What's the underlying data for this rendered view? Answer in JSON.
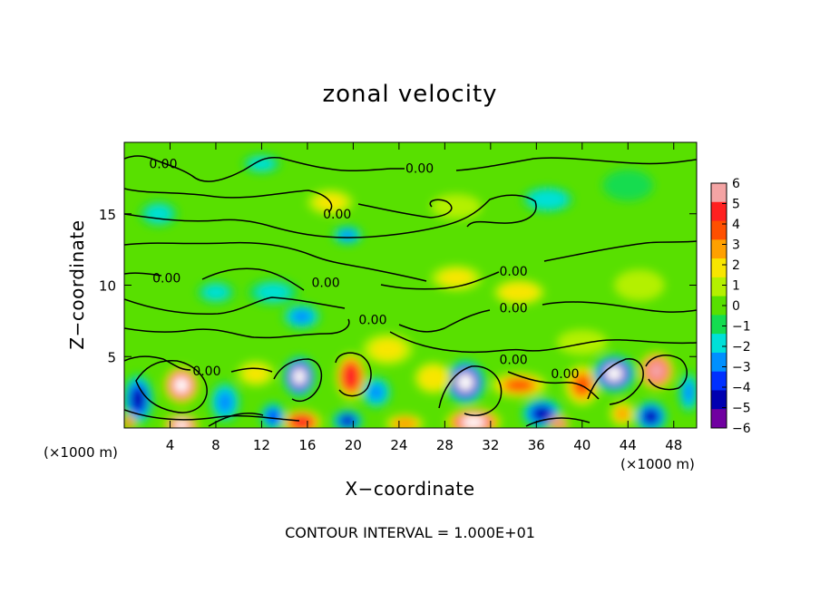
{
  "chart_data": {
    "type": "heatmap",
    "title": "zonal velocity",
    "xlabel": "X−coordinate",
    "ylabel": "Z−coordinate",
    "x_unit_left": "(×1000 m)",
    "x_unit_right": "(×1000 m)",
    "footer": "CONTOUR INTERVAL = 1.000E+01",
    "xlim": [
      0,
      50
    ],
    "ylim": [
      0,
      20
    ],
    "x_ticks": [
      4,
      8,
      12,
      16,
      20,
      24,
      28,
      32,
      36,
      40,
      44,
      48
    ],
    "y_ticks": [
      5,
      10,
      15
    ],
    "colorbar": {
      "min": -6,
      "max": 6,
      "ticks": [
        "6",
        "5",
        "4",
        "3",
        "2",
        "1",
        "0",
        "−1",
        "−2",
        "−3",
        "−4",
        "−5",
        "−6"
      ],
      "colors": [
        "#f4a4a4",
        "#ff2020",
        "#ff5000",
        "#ffa000",
        "#f8e600",
        "#b4f000",
        "#58e000",
        "#14dc50",
        "#00e0d8",
        "#0090ff",
        "#0030ff",
        "#0000b0",
        "#7000a0"
      ]
    },
    "contour_labels": [
      {
        "text": "0.00",
        "x": 3.4,
        "z": 18.5
      },
      {
        "text": "0.00",
        "x": 25.8,
        "z": 18.2
      },
      {
        "text": "0.00",
        "x": 18.6,
        "z": 15.0
      },
      {
        "text": "0.00",
        "x": 3.7,
        "z": 10.5
      },
      {
        "text": "0.00",
        "x": 17.6,
        "z": 10.2
      },
      {
        "text": "0.00",
        "x": 34.0,
        "z": 11.0
      },
      {
        "text": "0.00",
        "x": 34.0,
        "z": 8.4
      },
      {
        "text": "0.00",
        "x": 21.7,
        "z": 7.6
      },
      {
        "text": "0.00",
        "x": 7.2,
        "z": 4.0
      },
      {
        "text": "0.00",
        "x": 34.0,
        "z": 4.8
      },
      {
        "text": "0.00",
        "x": 38.5,
        "z": 3.8
      }
    ],
    "features": [
      {
        "x": 5.0,
        "z": 3.0,
        "v": 6.5,
        "sx": 1.4,
        "sz": 1.2
      },
      {
        "x": 5.0,
        "z": 0.2,
        "v": 6.5,
        "sx": 1.4,
        "sz": 0.7
      },
      {
        "x": 1.2,
        "z": 2.0,
        "v": -4.8,
        "sx": 1.2,
        "sz": 1.6
      },
      {
        "x": 0.4,
        "z": 0.4,
        "v": 4.5,
        "sx": 0.5,
        "sz": 0.5
      },
      {
        "x": 8.8,
        "z": 1.8,
        "v": -3.0,
        "sx": 1.2,
        "sz": 1.3
      },
      {
        "x": 15.3,
        "z": 3.6,
        "v": -6.2,
        "sx": 1.3,
        "sz": 1.3
      },
      {
        "x": 15.5,
        "z": 0.4,
        "v": 5.5,
        "sx": 1.6,
        "sz": 0.8
      },
      {
        "x": 13.0,
        "z": 0.8,
        "v": -4.0,
        "sx": 1.0,
        "sz": 0.9
      },
      {
        "x": 19.8,
        "z": 3.6,
        "v": 5.5,
        "sx": 1.2,
        "sz": 1.5
      },
      {
        "x": 22.0,
        "z": 2.5,
        "v": -2.5,
        "sx": 1.2,
        "sz": 1.0
      },
      {
        "x": 19.5,
        "z": 0.5,
        "v": -4.5,
        "sx": 1.2,
        "sz": 0.7
      },
      {
        "x": 24.5,
        "z": 0.3,
        "v": 3.5,
        "sx": 1.5,
        "sz": 0.6
      },
      {
        "x": 29.8,
        "z": 3.2,
        "v": -6.2,
        "sx": 1.6,
        "sz": 1.4
      },
      {
        "x": 30.5,
        "z": 0.4,
        "v": 6.5,
        "sx": 2.2,
        "sz": 0.9
      },
      {
        "x": 34.5,
        "z": 3.0,
        "v": 4.0,
        "sx": 2.2,
        "sz": 0.8
      },
      {
        "x": 36.5,
        "z": 1.0,
        "v": -4.8,
        "sx": 1.6,
        "sz": 1.0
      },
      {
        "x": 38.0,
        "z": 0.3,
        "v": 6.0,
        "sx": 0.8,
        "sz": 0.5
      },
      {
        "x": 40.0,
        "z": 3.0,
        "v": 4.0,
        "sx": 1.4,
        "sz": 1.3
      },
      {
        "x": 42.8,
        "z": 3.8,
        "v": -6.2,
        "sx": 1.7,
        "sz": 1.2
      },
      {
        "x": 46.5,
        "z": 4.0,
        "v": 6.2,
        "sx": 1.4,
        "sz": 1.2
      },
      {
        "x": 46.0,
        "z": 0.8,
        "v": -4.5,
        "sx": 1.3,
        "sz": 1.0
      },
      {
        "x": 43.5,
        "z": 1.0,
        "v": 3.0,
        "sx": 1.0,
        "sz": 0.8
      },
      {
        "x": 49.3,
        "z": 2.5,
        "v": -3.0,
        "sx": 0.8,
        "sz": 1.3
      },
      {
        "x": 27.0,
        "z": 3.5,
        "v": 2.5,
        "sx": 1.5,
        "sz": 1.0
      },
      {
        "x": 11.5,
        "z": 3.8,
        "v": 2.0,
        "sx": 1.5,
        "sz": 0.8
      },
      {
        "x": 23.0,
        "z": 5.5,
        "v": 2.0,
        "sx": 2.0,
        "sz": 1.0
      },
      {
        "x": 13.0,
        "z": 9.5,
        "v": -1.8,
        "sx": 2.0,
        "sz": 0.8
      },
      {
        "x": 15.5,
        "z": 7.8,
        "v": -2.5,
        "sx": 1.5,
        "sz": 0.8
      },
      {
        "x": 19.5,
        "z": 13.5,
        "v": -2.5,
        "sx": 1.2,
        "sz": 0.6
      },
      {
        "x": 37.0,
        "z": 16.0,
        "v": -2.2,
        "sx": 2.0,
        "sz": 0.8
      },
      {
        "x": 12.0,
        "z": 18.5,
        "v": -2.0,
        "sx": 1.5,
        "sz": 0.6
      },
      {
        "x": 29.0,
        "z": 10.5,
        "v": 1.8,
        "sx": 2.0,
        "sz": 0.8
      },
      {
        "x": 34.5,
        "z": 9.5,
        "v": 2.2,
        "sx": 2.0,
        "sz": 0.8
      },
      {
        "x": 18.0,
        "z": 15.8,
        "v": 2.0,
        "sx": 1.8,
        "sz": 0.8
      },
      {
        "x": 29.0,
        "z": 15.5,
        "v": 1.5,
        "sx": 2.0,
        "sz": 0.8
      },
      {
        "x": 45.0,
        "z": 10.0,
        "v": 1.5,
        "sx": 2.0,
        "sz": 1.0
      },
      {
        "x": 8.0,
        "z": 9.5,
        "v": -1.5,
        "sx": 1.5,
        "sz": 0.7
      },
      {
        "x": 3.0,
        "z": 15.0,
        "v": -1.5,
        "sx": 1.5,
        "sz": 0.8
      },
      {
        "x": 40.0,
        "z": 6.0,
        "v": 1.5,
        "sx": 2.0,
        "sz": 0.8
      },
      {
        "x": 44.0,
        "z": 17.0,
        "v": -1.2,
        "sx": 2.0,
        "sz": 1.0
      }
    ]
  }
}
